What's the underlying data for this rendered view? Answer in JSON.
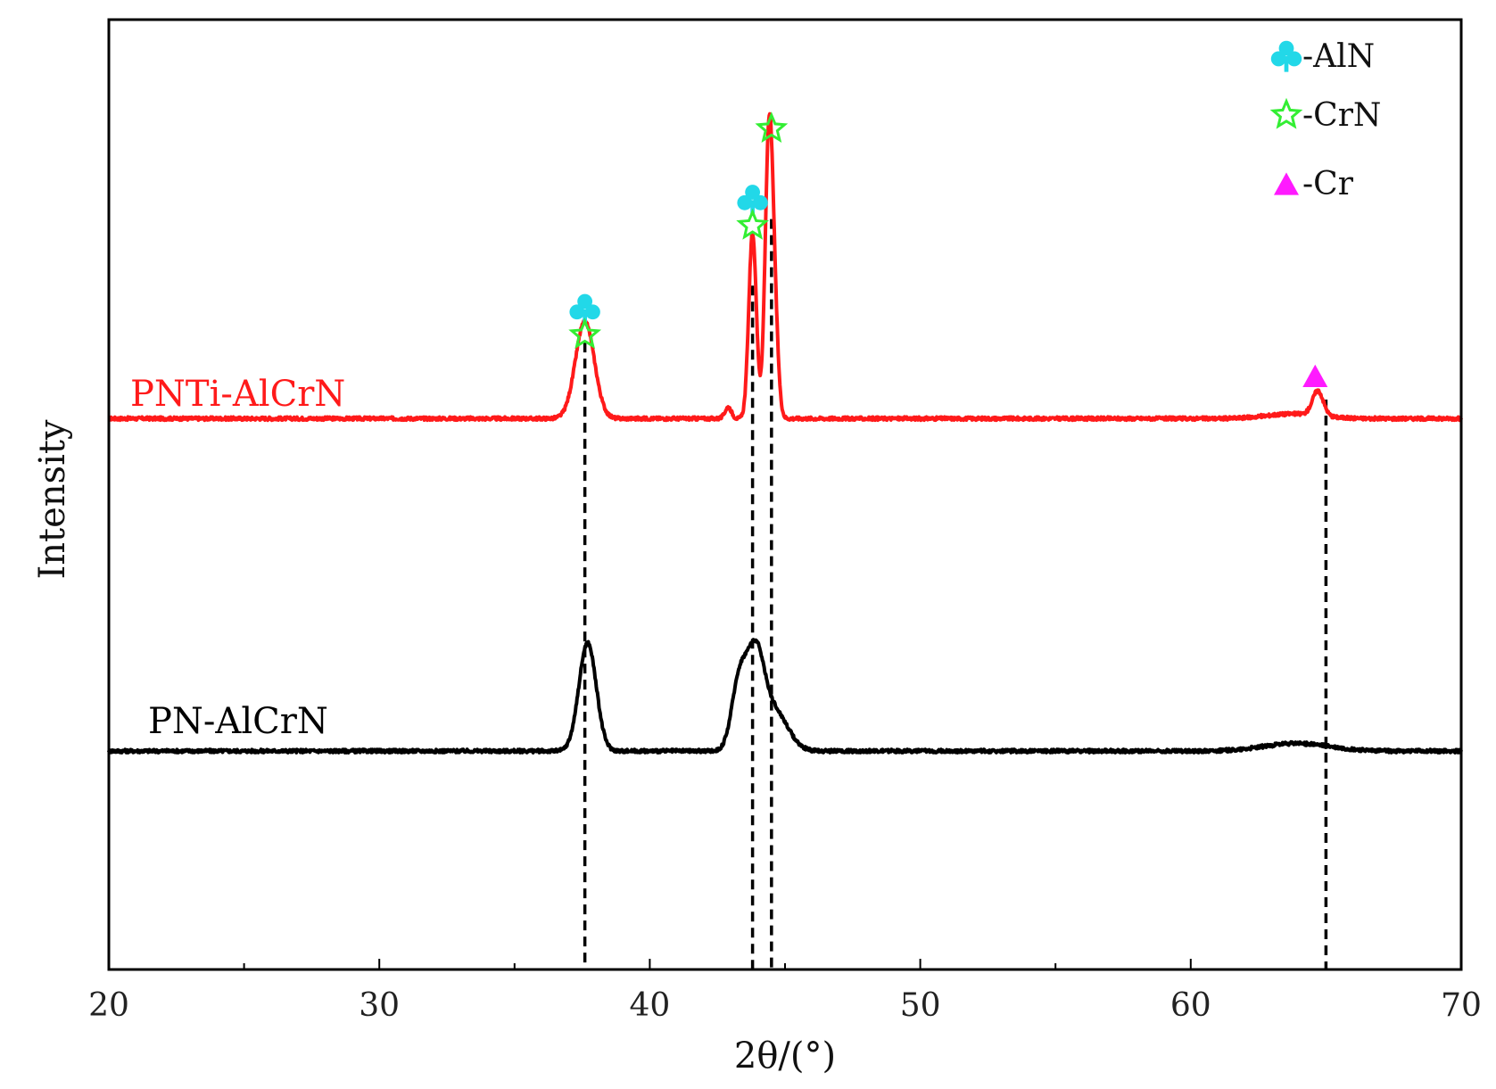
{
  "chart_data": {
    "type": "line",
    "xlabel": "2θ/(°)",
    "ylabel": "Intensity",
    "xlim": [
      20,
      70
    ],
    "ylim": [
      0,
      100
    ],
    "x_ticks": [
      20,
      30,
      40,
      50,
      60,
      70
    ],
    "x_tick_labels": [
      "20",
      "30",
      "40",
      "50",
      "60",
      "70"
    ],
    "y_ticks_shown": false,
    "grid": false,
    "series": [
      {
        "name": "PNTi-AlCrN",
        "color": "#ff1a1a",
        "baseline": 58,
        "peaks": [
          {
            "x": 37.6,
            "height": 10.2,
            "width": 0.35
          },
          {
            "x": 42.9,
            "height": 1.2,
            "width": 0.12
          },
          {
            "x": 43.8,
            "height": 19.5,
            "width": 0.14
          },
          {
            "x": 44.4,
            "height": 28.0,
            "width": 0.14
          },
          {
            "x": 44.6,
            "height": 10.0,
            "width": 0.14
          },
          {
            "x": 63.8,
            "height": 0.5,
            "width": 1.0
          },
          {
            "x": 64.7,
            "height": 2.6,
            "width": 0.2
          }
        ]
      },
      {
        "name": "PN-AlCrN",
        "color": "#000000",
        "baseline": 23,
        "peaks": [
          {
            "x": 37.7,
            "height": 11.4,
            "width": 0.32
          },
          {
            "x": 43.3,
            "height": 7.0,
            "width": 0.28
          },
          {
            "x": 43.9,
            "height": 9.4,
            "width": 0.32
          },
          {
            "x": 44.6,
            "height": 4.2,
            "width": 0.5
          },
          {
            "x": 63.9,
            "height": 0.8,
            "width": 1.2
          }
        ]
      }
    ],
    "reference_lines_x": [
      37.6,
      43.8,
      44.5,
      65.0
    ],
    "legend": {
      "position": "top-right",
      "entries": [
        {
          "marker": "club",
          "color": "#22d8e8",
          "label": "-AlN"
        },
        {
          "marker": "star",
          "color": "#33ee33",
          "label": "-CrN"
        },
        {
          "marker": "triangle",
          "color": "#ff1aff",
          "label": "-Cr"
        }
      ]
    },
    "peak_markers": [
      {
        "x": 37.6,
        "y": 69.5,
        "marker": "club",
        "color": "#22d8e8"
      },
      {
        "x": 37.6,
        "y": 66.8,
        "marker": "star",
        "color": "#33ee33"
      },
      {
        "x": 43.8,
        "y": 81.0,
        "marker": "club",
        "color": "#22d8e8"
      },
      {
        "x": 43.8,
        "y": 78.3,
        "marker": "star",
        "color": "#33ee33"
      },
      {
        "x": 44.5,
        "y": 88.5,
        "marker": "star",
        "color": "#33ee33"
      },
      {
        "x": 64.6,
        "y": 62.5,
        "marker": "triangle",
        "color": "#ff1aff"
      }
    ]
  }
}
